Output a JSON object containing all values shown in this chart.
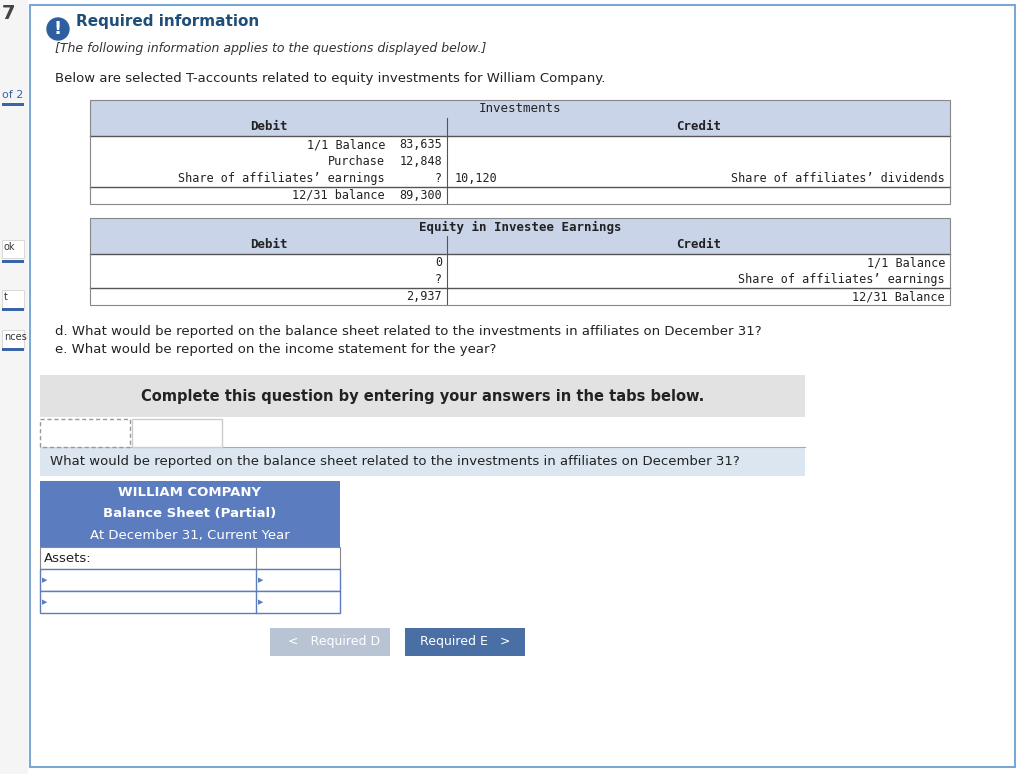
{
  "page_bg": "#ffffff",
  "main_border_color": "#7ba7d4",
  "exclamation_bg": "#2d5fa0",
  "required_info_color": "#1f4e79",
  "required_info_text": "Required information",
  "italic_text": "[The following information applies to the questions displayed below.]",
  "intro_text": "Below are selected T-accounts related to equity investments for William Company.",
  "table1_title": "Investments",
  "table_header_bg": "#c9d4e8",
  "table1_debit_header": "Debit",
  "table1_credit_header": "Credit",
  "table1_rows": [
    {
      "debit_label": "1/1 Balance",
      "debit_value": "83,635",
      "credit_value": "",
      "credit_label": ""
    },
    {
      "debit_label": "Purchase",
      "debit_value": "12,848",
      "credit_value": "",
      "credit_label": ""
    },
    {
      "debit_label": "Share of affiliates’ earnings",
      "debit_value": "?",
      "credit_value": "10,120",
      "credit_label": "Share of affiliates’ dividends"
    },
    {
      "debit_label": "12/31 balance",
      "debit_value": "89,300",
      "credit_value": "",
      "credit_label": ""
    }
  ],
  "table2_title": "Equity in Investee Earnings",
  "table2_debit_header": "Debit",
  "table2_credit_header": "Credit",
  "table2_rows": [
    {
      "debit_value": "0",
      "credit_label": "1/1 Balance"
    },
    {
      "debit_value": "?",
      "credit_label": "Share of affiliates’ earnings"
    },
    {
      "debit_value": "2,937",
      "credit_label": "12/31 Balance"
    }
  ],
  "question_d": "d. What would be reported on the balance sheet related to the investments in affiliates on December 31?",
  "question_e": "e. What would be reported on the income statement for the year?",
  "complete_text": "Complete this question by entering your answers in the tabs below.",
  "complete_bg": "#e2e2e2",
  "tab1_text": "Required D",
  "tab2_text": "Required E",
  "answer_question": "What would be reported on the balance sheet related to the investments in affiliates on December 31?",
  "answer_question_bg": "#dce6f1",
  "bs_title1": "WILLIAM COMPANY",
  "bs_title2": "Balance Sheet (Partial)",
  "bs_title3": "At December 31, Current Year",
  "bs_header_bg": "#5b7dbf",
  "bs_assets_label": "Assets:",
  "btn1_text": "  <   Required D",
  "btn1_bg": "#b8c4d4",
  "btn2_text": "Required E   >",
  "btn2_bg": "#4a6fa5",
  "sidebar_of2": "of 2",
  "sidebar_ok": "ok",
  "sidebar_t": "t",
  "sidebar_nces": "nces",
  "left_accent_color": "#3a63a8"
}
